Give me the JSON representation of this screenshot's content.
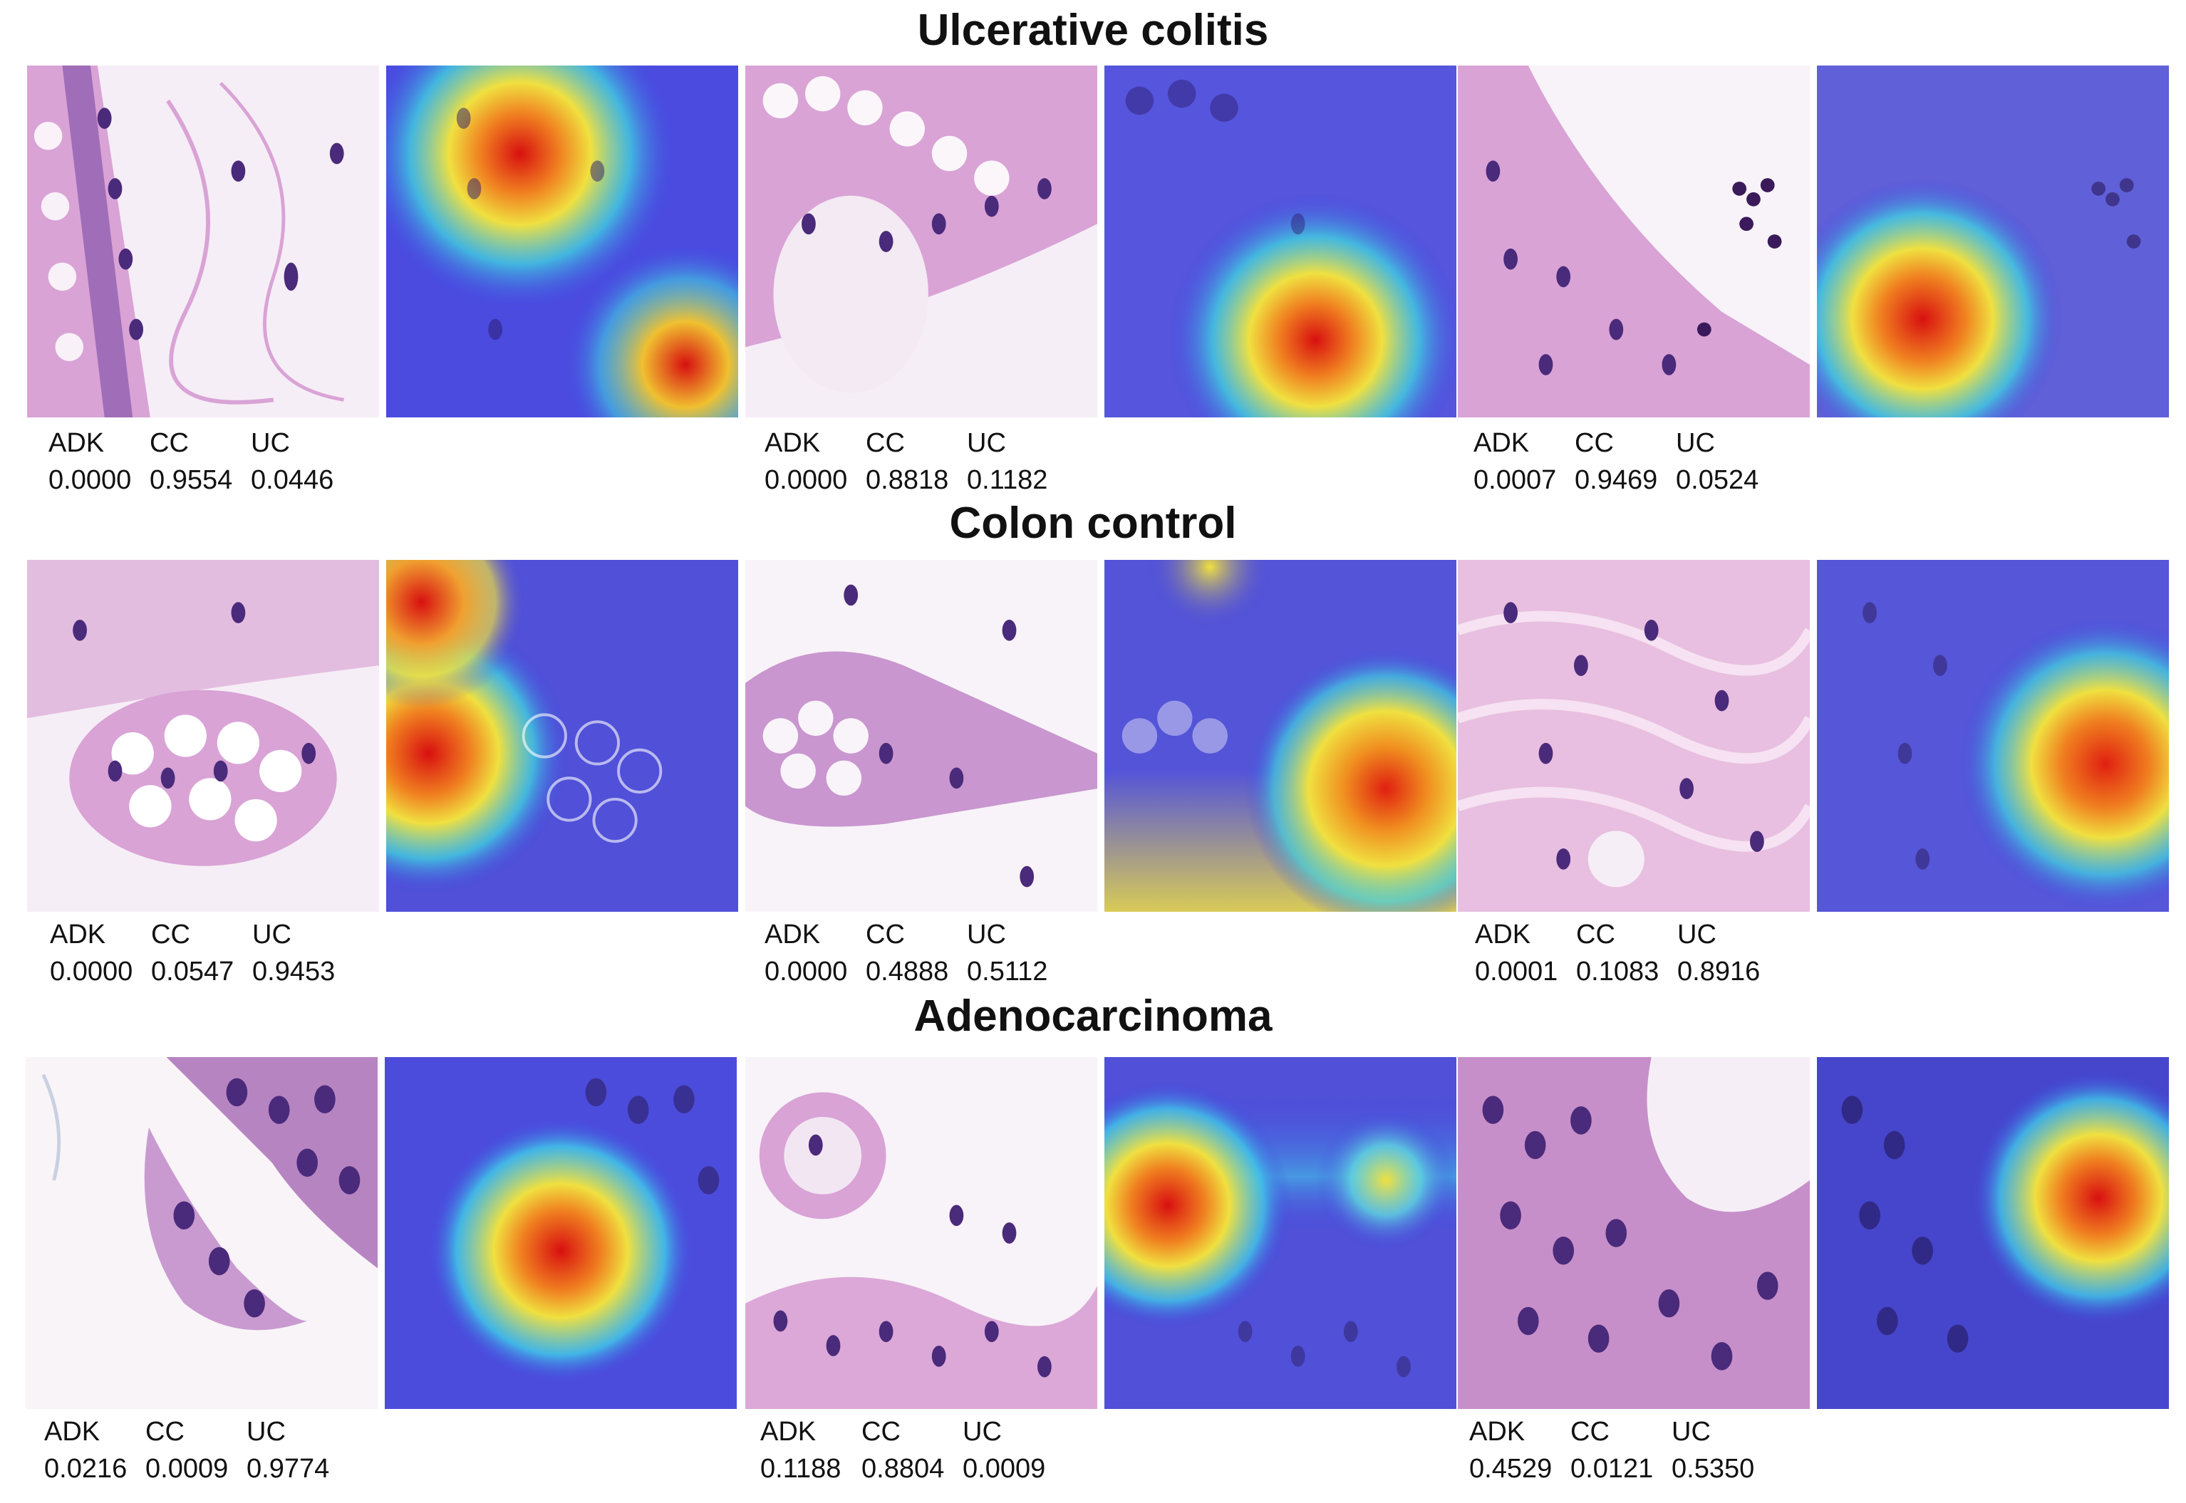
{
  "groups": [
    {
      "title": "Ulcerative colitis",
      "pairs": [
        {
          "scores": {
            "labels": [
              "ADK",
              "CC",
              "UC"
            ],
            "values": [
              "0.0000",
              "0.9554",
              "0.0446"
            ]
          }
        },
        {
          "scores": {
            "labels": [
              "ADK",
              "CC",
              "UC"
            ],
            "values": [
              "0.0000",
              "0.8818",
              "0.1182"
            ]
          }
        },
        {
          "scores": {
            "labels": [
              "ADK",
              "CC",
              "UC"
            ],
            "values": [
              "0.0007",
              "0.9469",
              "0.0524"
            ]
          }
        }
      ]
    },
    {
      "title": "Colon control",
      "pairs": [
        {
          "scores": {
            "labels": [
              "ADK",
              "CC",
              "UC"
            ],
            "values": [
              "0.0000",
              "0.0547",
              "0.9453"
            ]
          }
        },
        {
          "scores": {
            "labels": [
              "ADK",
              "CC",
              "UC"
            ],
            "values": [
              "0.0000",
              "0.4888",
              "0.5112"
            ]
          }
        },
        {
          "scores": {
            "labels": [
              "ADK",
              "CC",
              "UC"
            ],
            "values": [
              "0.0001",
              "0.1083",
              "0.8916"
            ]
          }
        }
      ]
    },
    {
      "title": "Adenocarcinoma",
      "pairs": [
        {
          "scores": {
            "labels": [
              "ADK",
              "CC",
              "UC"
            ],
            "values": [
              "0.0216",
              "0.0009",
              "0.9774"
            ]
          }
        },
        {
          "scores": {
            "labels": [
              "ADK",
              "CC",
              "UC"
            ],
            "values": [
              "0.1188",
              "0.8804",
              "0.0009"
            ]
          }
        },
        {
          "scores": {
            "labels": [
              "ADK",
              "CC",
              "UC"
            ],
            "values": [
              "0.4529",
              "0.0121",
              "0.5350"
            ]
          }
        }
      ]
    }
  ],
  "colors": {
    "tissue_background": "#f6eef6",
    "eosin": "#d9a3d6",
    "hematoxylin": "#4a2a7a",
    "heatmap_base": "#3f3fe0",
    "heatmap_hot": "#e01010"
  }
}
